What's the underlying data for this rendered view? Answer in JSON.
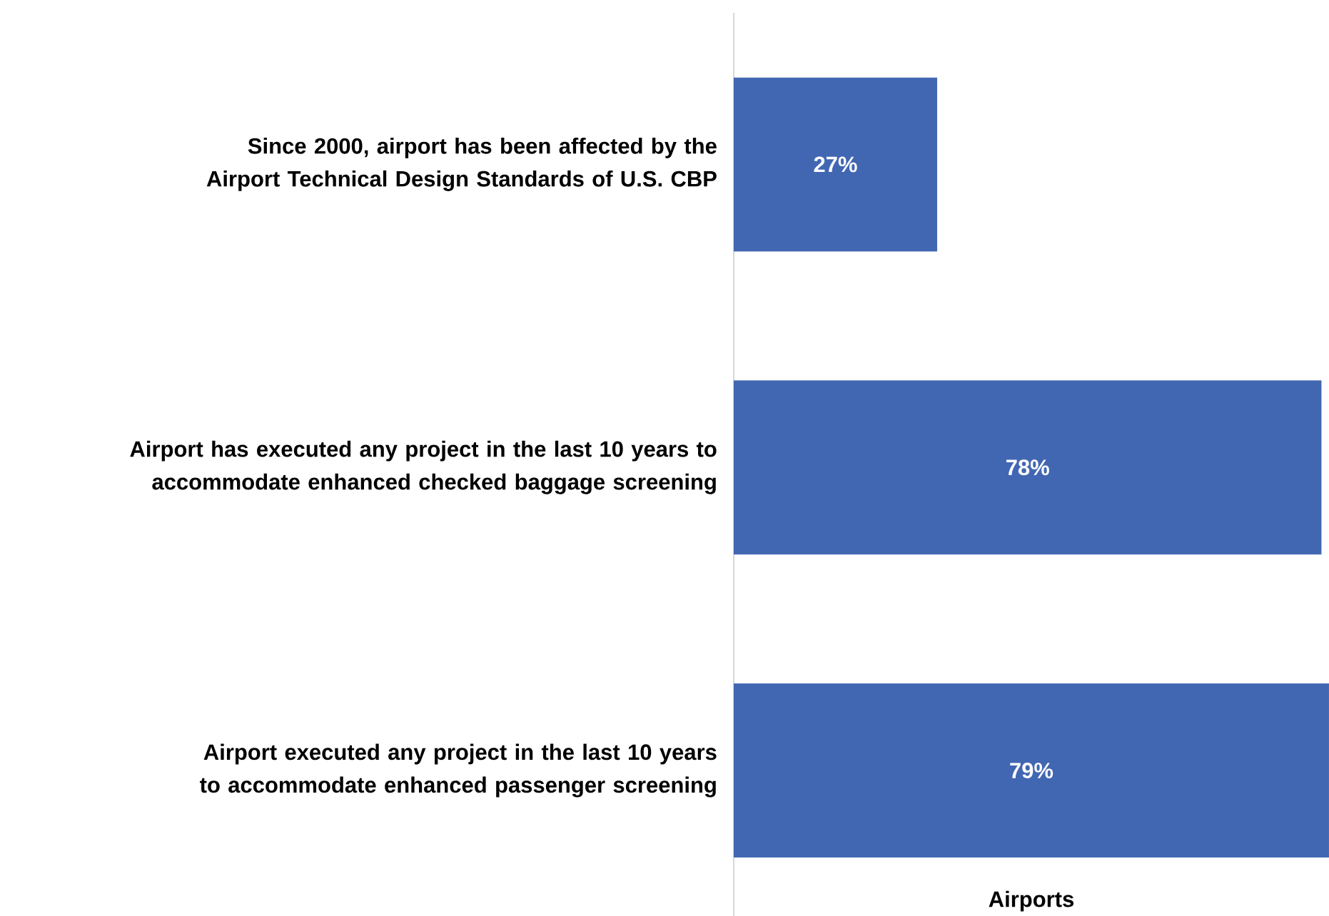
{
  "chart_data": {
    "type": "bar",
    "orientation": "horizontal",
    "xlabel": "Airports",
    "categories": [
      "Since 2000, airport has been affected by the Airport Technical Design Standards of U.S. CBP",
      "Airport has executed any project in the last 10 years to accommodate enhanced checked baggage screening",
      "Airport executed any project in the last 10 years to accommodate enhanced passenger screening"
    ],
    "values": [
      27,
      78,
      79
    ],
    "value_labels": [
      "27%",
      "78%",
      "79%"
    ],
    "color": "#4267b2"
  }
}
